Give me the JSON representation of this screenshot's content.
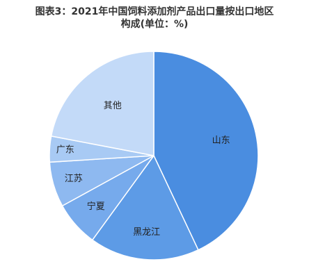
{
  "chart_data": {
    "type": "pie",
    "title_line1": "图表3：2021年中国饲料添加剂产品出口量按出口地区",
    "title_line2": "构成(单位：%)",
    "start_angle_deg": 0,
    "direction": "clockwise",
    "slices": [
      {
        "label": "山东",
        "value": 43,
        "color": "#4a8de0"
      },
      {
        "label": "黑龙江",
        "value": 17,
        "color": "#5d9be6"
      },
      {
        "label": "宁夏",
        "value": 7,
        "color": "#76aaec"
      },
      {
        "label": "江苏",
        "value": 7,
        "color": "#8eb9f0"
      },
      {
        "label": "广东",
        "value": 4,
        "color": "#a8caf4"
      },
      {
        "label": "其他",
        "value": 22,
        "color": "#c3daf8"
      }
    ]
  }
}
